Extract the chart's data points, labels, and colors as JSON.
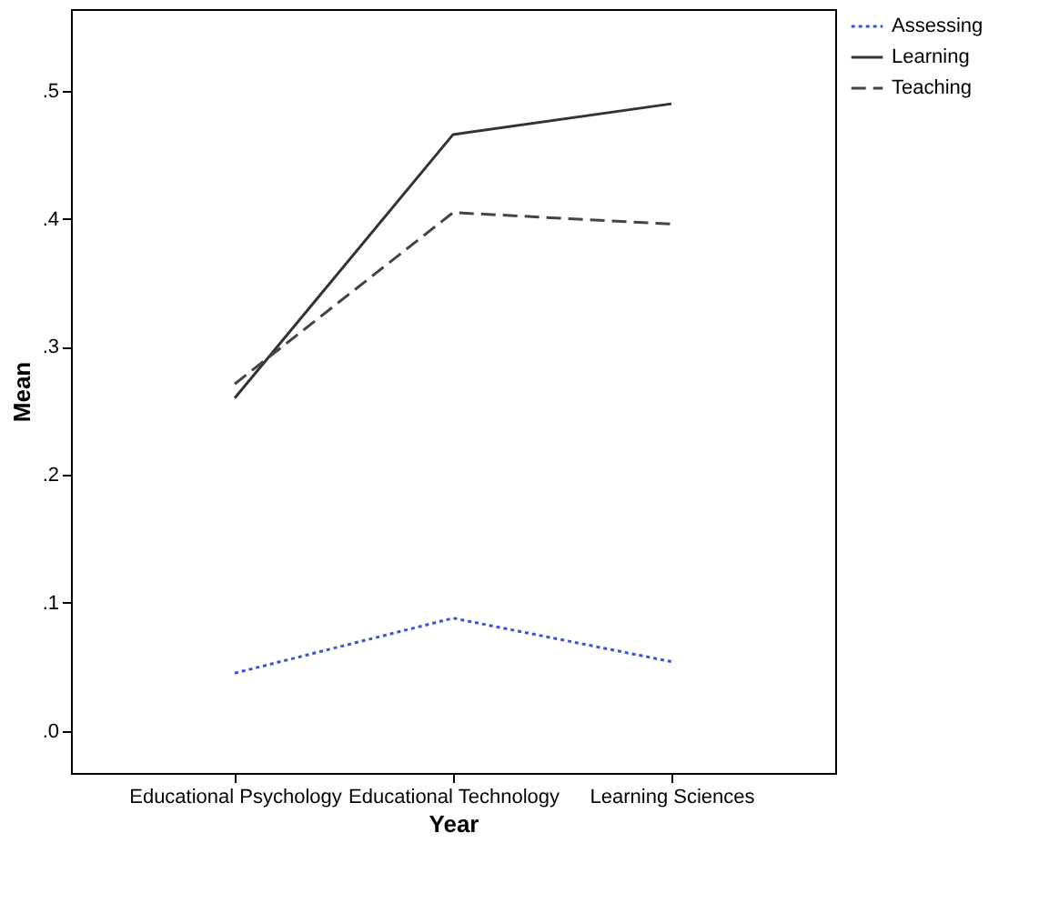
{
  "chart_data": {
    "type": "line",
    "xlabel": "Year",
    "ylabel": "Mean",
    "categories": [
      "Educational Psychology",
      "Educational Technology",
      "Learning Sciences"
    ],
    "series": [
      {
        "name": "Assessing",
        "color": "#3a56d4",
        "line_style": "dotted",
        "values": [
          0.045,
          0.088,
          0.054
        ]
      },
      {
        "name": "Learning",
        "color": "#333333",
        "line_style": "solid",
        "values": [
          0.26,
          0.466,
          0.49
        ]
      },
      {
        "name": "Teaching",
        "color": "#444444",
        "line_style": "dashed",
        "values": [
          0.271,
          0.405,
          0.396
        ]
      }
    ],
    "ylim": [
      -0.033,
      0.564
    ],
    "yticks": [
      {
        "value": 0,
        "label": ".0"
      },
      {
        "value": 0.1,
        "label": ".1"
      },
      {
        "value": 0.2,
        "label": ".2"
      },
      {
        "value": 0.3,
        "label": ".3"
      },
      {
        "value": 0.4,
        "label": ".4"
      },
      {
        "value": 0.5,
        "label": ".5"
      }
    ],
    "grid": false,
    "legend": "top right",
    "marker": "none"
  }
}
